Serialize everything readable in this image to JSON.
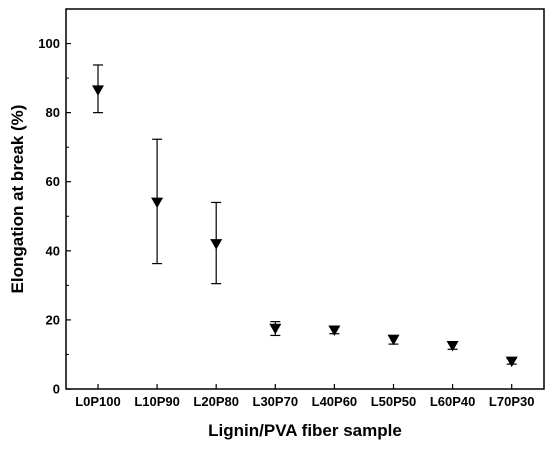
{
  "chart_data": {
    "type": "scatter",
    "title": "",
    "xlabel": "Lignin/PVA fiber sample",
    "ylabel": "Elongation at break (%)",
    "ylim": [
      0,
      110
    ],
    "y_ticks": [
      0,
      20,
      40,
      60,
      80,
      100
    ],
    "grid": false,
    "legend": "none",
    "marker": "down-triangle",
    "color": "#000000",
    "categories": [
      "L0P100",
      "L10P90",
      "L20P80",
      "L30P70",
      "L40P60",
      "L50P50",
      "L60P40",
      "L70P30"
    ],
    "series": [
      {
        "values": [
          86.5,
          54.0,
          42.0,
          17.5,
          17.0,
          14.3,
          12.5,
          8.0
        ],
        "error_low": [
          80.0,
          36.3,
          30.5,
          15.5,
          16.0,
          13.0,
          11.5,
          7.2
        ],
        "error_high": [
          93.8,
          72.3,
          54.0,
          19.5,
          18.0,
          15.5,
          13.5,
          8.8
        ]
      }
    ]
  }
}
